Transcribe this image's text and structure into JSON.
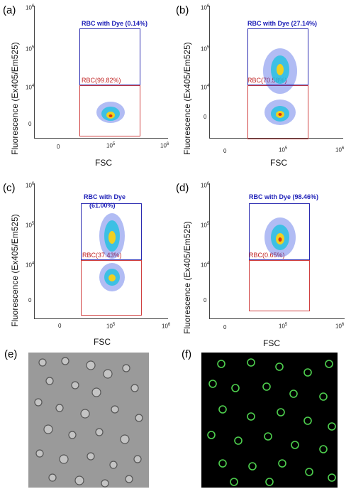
{
  "figure": {
    "panels": [
      {
        "id": "a",
        "label": "(a)",
        "ylabel": "Fluorescence (Ex405/Em525)",
        "xlabel": "FSC",
        "gate_top": "RBC with Dye (0.14%)",
        "gate_bottom": "RBC(99.82%)"
      },
      {
        "id": "b",
        "label": "(b)",
        "ylabel": "Fluorescence (Ex405/Em525)",
        "xlabel": "FSC",
        "gate_top": "RBC with Dye (27.14%)",
        "gate_bottom": "RBC(70.58%)"
      },
      {
        "id": "c",
        "label": "(c)",
        "ylabel": "Fluorescence (Ex405/Em525)",
        "xlabel": "FSC",
        "gate_top": "RBC with Dye",
        "gate_top2": "(61.00%)",
        "gate_bottom": "RBC(37.43%)"
      },
      {
        "id": "d",
        "label": "(d)",
        "ylabel": "Fluorescence (Ex405/Em525)",
        "xlabel": "FSC",
        "gate_top": "RBC with Dye (98.46%)",
        "gate_bottom": "RBC(0.65%)"
      }
    ],
    "ticks": {
      "zero": "0",
      "ten": "10",
      "e4": "4",
      "e5": "5",
      "e6": "6"
    },
    "micro_labels": {
      "e": "(e)",
      "f": "(f)"
    }
  }
}
